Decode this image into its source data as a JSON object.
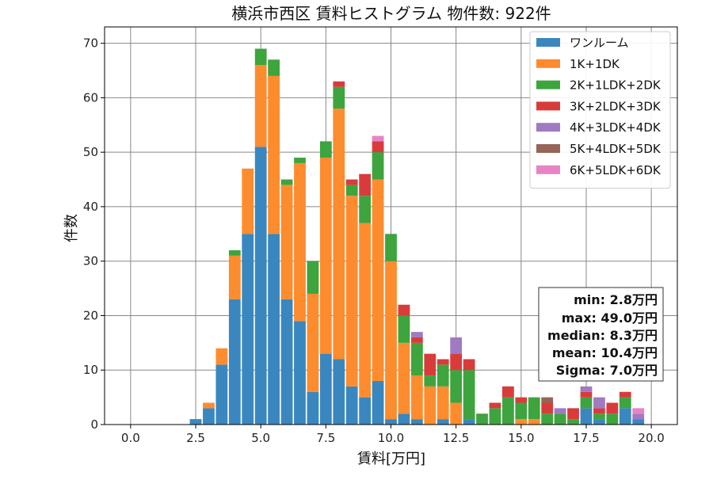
{
  "chart_data": {
    "type": "bar",
    "stacked": true,
    "title": "横浜市西区 賃料ヒストグラム  物件数: 922件",
    "xlabel": "賃料[万円]",
    "ylabel": "件数",
    "xlim": [
      -1.0,
      21.0
    ],
    "ylim": [
      0,
      73
    ],
    "xticks": [
      0.0,
      2.5,
      5.0,
      7.5,
      10.0,
      12.5,
      15.0,
      17.5,
      20.0
    ],
    "xtick_labels": [
      "0.0",
      "2.5",
      "5.0",
      "7.5",
      "10.0",
      "12.5",
      "15.0",
      "17.5",
      "20.0"
    ],
    "yticks": [
      0,
      10,
      20,
      30,
      40,
      50,
      60,
      70
    ],
    "ytick_labels": [
      "0",
      "10",
      "20",
      "30",
      "40",
      "50",
      "60",
      "70"
    ],
    "grid": true,
    "legend_position": "top-right",
    "bin_width": 0.5,
    "x": [
      2.5,
      3.0,
      3.5,
      4.0,
      4.5,
      5.0,
      5.5,
      6.0,
      6.5,
      7.0,
      7.5,
      8.0,
      8.5,
      9.0,
      9.5,
      10.0,
      10.5,
      11.0,
      11.5,
      12.0,
      12.5,
      13.0,
      13.5,
      14.0,
      14.5,
      15.0,
      15.5,
      16.0,
      16.5,
      17.0,
      17.5,
      18.0,
      18.5,
      19.0,
      19.5
    ],
    "series": [
      {
        "name": "ワンルーム",
        "color": "#3a87bf",
        "values": [
          1,
          3,
          11,
          23,
          35,
          51,
          35,
          23,
          19,
          6,
          13,
          12,
          7,
          5,
          8,
          1,
          2,
          1,
          0,
          1,
          0,
          1,
          0,
          0,
          0,
          0,
          0,
          0,
          0,
          0,
          3,
          1,
          0,
          3,
          1
        ]
      },
      {
        "name": "1K+1DK",
        "color": "#fd8c2e",
        "values": [
          0,
          1,
          3,
          8,
          12,
          15,
          29,
          21,
          29,
          18,
          36,
          46,
          35,
          32,
          37,
          29,
          13,
          8,
          7,
          6,
          4,
          0,
          0,
          0,
          0,
          1,
          1,
          0,
          0,
          0,
          0,
          0,
          0,
          0,
          0
        ]
      },
      {
        "name": "2K+1LDK+2DK",
        "color": "#3ea43e",
        "values": [
          0,
          0,
          0,
          1,
          0,
          3,
          3,
          1,
          1,
          6,
          3,
          4,
          2,
          5,
          5,
          5,
          5,
          6,
          2,
          4,
          6,
          9,
          2,
          3,
          5,
          3,
          4,
          2,
          2,
          1,
          2,
          1,
          2,
          2,
          0
        ]
      },
      {
        "name": "3K+2LDK+3DK",
        "color": "#d93b3b",
        "values": [
          0,
          0,
          0,
          0,
          0,
          0,
          0,
          0,
          0,
          0,
          0,
          1,
          1,
          4,
          2,
          0,
          2,
          1,
          4,
          1,
          3,
          2,
          0,
          1,
          2,
          1,
          0,
          2,
          0,
          2,
          1,
          1,
          2,
          1,
          0
        ]
      },
      {
        "name": "4K+3LDK+4DK",
        "color": "#a07ac3",
        "values": [
          0,
          0,
          0,
          0,
          0,
          0,
          0,
          0,
          0,
          0,
          0,
          0,
          0,
          0,
          0,
          0,
          0,
          1,
          0,
          0,
          3,
          0,
          0,
          0,
          0,
          0,
          0,
          0,
          1,
          0,
          1,
          2,
          0,
          0,
          1
        ]
      },
      {
        "name": "5K+4LDK+5DK",
        "color": "#966558",
        "values": [
          0,
          0,
          0,
          0,
          0,
          0,
          0,
          0,
          0,
          0,
          0,
          0,
          0,
          0,
          0,
          0,
          0,
          0,
          0,
          0,
          0,
          0,
          0,
          0,
          0,
          0,
          0,
          1,
          0,
          0,
          0,
          0,
          0,
          0,
          0
        ]
      },
      {
        "name": "6K+5LDK+6DK",
        "color": "#e883c6",
        "values": [
          0,
          0,
          0,
          0,
          0,
          0,
          0,
          0,
          0,
          0,
          0,
          0,
          0,
          0,
          1,
          0,
          0,
          0,
          0,
          0,
          0,
          0,
          0,
          0,
          0,
          0,
          0,
          0,
          0,
          0,
          0,
          0,
          0,
          0,
          1
        ]
      }
    ],
    "stats": {
      "min": "min: 2.8万円",
      "max": "max: 49.0万円",
      "median": "median: 8.3万円",
      "mean": "mean: 10.4万円",
      "sigma": "Sigma: 7.0万円"
    }
  }
}
